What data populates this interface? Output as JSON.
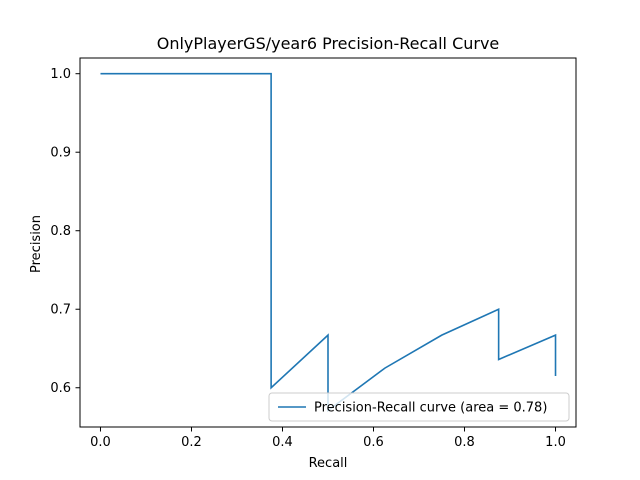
{
  "chart_data": {
    "type": "line",
    "title": "OnlyPlayerGS/year6 Precision-Recall Curve",
    "xlabel": "Recall",
    "ylabel": "Precision",
    "xlim": [
      -0.045,
      1.045
    ],
    "ylim": [
      0.55,
      1.02
    ],
    "xticks": [
      0.0,
      0.2,
      0.4,
      0.6,
      0.8,
      1.0
    ],
    "xtick_labels": [
      "0.0",
      "0.2",
      "0.4",
      "0.6",
      "0.8",
      "1.0"
    ],
    "yticks": [
      0.6,
      0.7,
      0.8,
      0.9,
      1.0
    ],
    "ytick_labels": [
      "0.6",
      "0.7",
      "0.8",
      "0.9",
      "1.0"
    ],
    "grid": false,
    "legend_position": "lower-right",
    "series": [
      {
        "name": "Precision-Recall curve (area = 0.78)",
        "color": "#1f77b4",
        "points": [
          [
            0.0,
            1.0
          ],
          [
            0.375,
            1.0
          ],
          [
            0.375,
            0.6
          ],
          [
            0.5,
            0.667
          ],
          [
            0.5,
            0.571
          ],
          [
            0.625,
            0.625
          ],
          [
            0.75,
            0.667
          ],
          [
            0.875,
            0.7
          ],
          [
            0.875,
            0.636
          ],
          [
            1.0,
            0.667
          ],
          [
            1.0,
            0.615
          ]
        ]
      }
    ]
  }
}
